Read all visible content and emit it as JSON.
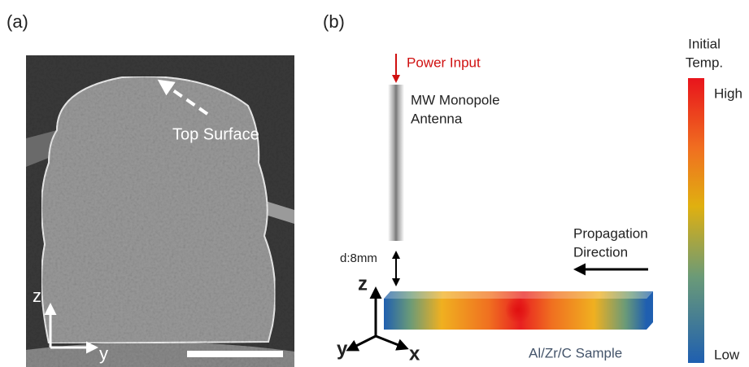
{
  "panel_a": {
    "label": "(a)",
    "annotation": "Top Surface",
    "axes": {
      "z": "z",
      "y": "y"
    }
  },
  "panel_b": {
    "label": "(b)",
    "power_input": "Power Input",
    "antenna": [
      "MW Monopole",
      "Antenna"
    ],
    "distance": "d:8mm",
    "axes": {
      "z": "z",
      "y": "y",
      "x": "x"
    },
    "sample": "Al/Zr/C Sample",
    "propagation": [
      "Propagation",
      "Direction"
    ],
    "colorbar": {
      "title": [
        "Initial",
        "Temp."
      ],
      "high": "High",
      "low": "Low"
    }
  }
}
